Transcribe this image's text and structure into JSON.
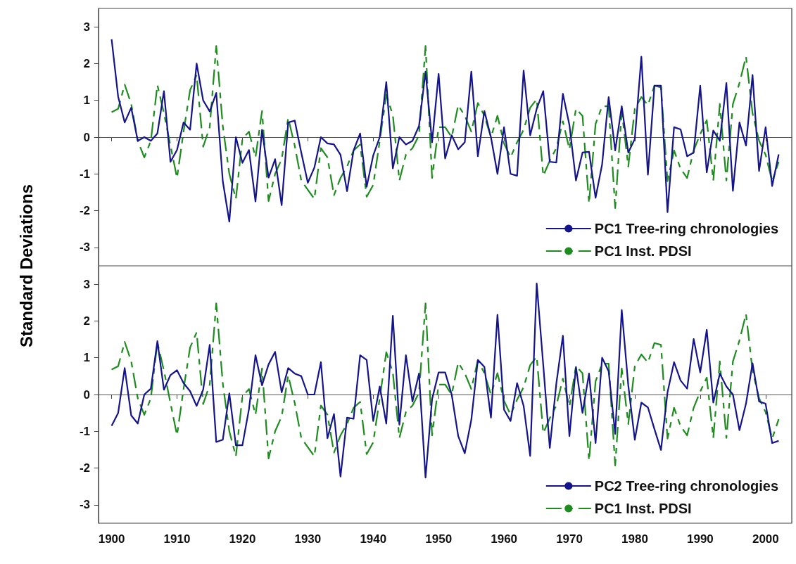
{
  "chart_data": [
    {
      "type": "line",
      "ylabel": "Standard Deviations",
      "xlim": [
        1898,
        2004
      ],
      "xticks": [
        1900,
        1910,
        1920,
        1930,
        1940,
        1950,
        1960,
        1970,
        1980,
        1990,
        2000
      ],
      "ylim": [
        -3.5,
        3.5
      ],
      "yticks": [
        -3,
        -2,
        -1,
        0,
        1,
        2,
        3
      ],
      "tick_labels": "y",
      "legend": "bottom right",
      "ref_lines": [
        {
          "axis": "y",
          "value": 0,
          "color": "#555555"
        }
      ],
      "x": [
        1900,
        1901,
        1902,
        1903,
        1904,
        1905,
        1906,
        1907,
        1908,
        1909,
        1910,
        1911,
        1912,
        1913,
        1914,
        1915,
        1916,
        1917,
        1918,
        1919,
        1920,
        1921,
        1922,
        1923,
        1924,
        1925,
        1926,
        1927,
        1928,
        1929,
        1930,
        1931,
        1932,
        1933,
        1934,
        1935,
        1936,
        1937,
        1938,
        1939,
        1940,
        1941,
        1942,
        1943,
        1944,
        1945,
        1946,
        1947,
        1948,
        1949,
        1950,
        1951,
        1952,
        1953,
        1954,
        1955,
        1956,
        1957,
        1958,
        1959,
        1960,
        1961,
        1962,
        1963,
        1964,
        1965,
        1966,
        1967,
        1968,
        1969,
        1970,
        1971,
        1972,
        1973,
        1974,
        1975,
        1976,
        1977,
        1978,
        1979,
        1980,
        1981,
        1982,
        1983,
        1984,
        1985,
        1986,
        1987,
        1988,
        1989,
        1990,
        1991,
        1992,
        1993,
        1994,
        1995,
        1996,
        1997,
        1998,
        1999,
        2000,
        2001,
        2002
      ],
      "series": [
        {
          "name": "PC1 Tree-ring chronologies",
          "color": "#14148c",
          "line_style": "solid",
          "values": [
            2.66,
            1.1,
            0.4,
            0.8,
            -0.1,
            0.0,
            -0.1,
            0.1,
            1.25,
            -0.67,
            -0.35,
            0.4,
            0.2,
            2.0,
            1.0,
            0.7,
            1.2,
            -1.2,
            -2.3,
            0.0,
            -0.7,
            -0.35,
            -1.75,
            0.2,
            -1.1,
            -0.6,
            -1.85,
            0.4,
            0.45,
            -0.42,
            -1.24,
            -0.83,
            0.0,
            -0.17,
            -0.2,
            -0.48,
            -1.47,
            -0.36,
            0.1,
            -1.35,
            -0.5,
            0.0,
            1.5,
            -0.85,
            0.0,
            -0.2,
            -0.1,
            0.3,
            1.78,
            -0.14,
            1.72,
            -0.58,
            0.05,
            -0.33,
            -0.14,
            1.78,
            -0.52,
            0.71,
            0.0,
            -1.0,
            0.27,
            -1.0,
            -1.05,
            1.81,
            0.05,
            0.77,
            1.25,
            -0.67,
            -0.69,
            1.18,
            0.33,
            -1.18,
            -0.42,
            -0.4,
            -1.65,
            -0.74,
            1.09,
            -0.36,
            0.84,
            -0.42,
            -0.05,
            2.19,
            -1.02,
            1.4,
            1.4,
            -2.04,
            0.27,
            0.21,
            -0.52,
            -0.42,
            1.4,
            -0.96,
            0.18,
            -0.1,
            1.47,
            -1.46,
            0.4,
            -0.23,
            1.69,
            -0.92,
            0.27,
            -1.33,
            -0.47
          ]
        },
        {
          "name": "PC1 Inst. PDSI",
          "color": "#1e8c1e",
          "line_style": "dashed",
          "values": [
            0.68,
            0.77,
            1.43,
            0.9,
            -0.1,
            -0.55,
            -0.1,
            1.42,
            0.65,
            -0.23,
            -1.11,
            0.15,
            1.28,
            1.69,
            -0.26,
            0.27,
            2.48,
            0.3,
            -1.0,
            -1.68,
            -0.05,
            0.15,
            -0.55,
            0.71,
            -1.74,
            -1.0,
            -0.6,
            0.52,
            -0.23,
            -1.18,
            -1.43,
            -1.68,
            -0.3,
            -0.55,
            -1.58,
            -1.11,
            -0.8,
            -0.36,
            -0.2,
            -1.62,
            -1.3,
            -0.1,
            1.15,
            0.6,
            -1.18,
            -0.48,
            -0.3,
            0.05,
            2.48,
            -1.11,
            0.27,
            0.27,
            0.0,
            0.87,
            0.58,
            0.15,
            0.93,
            0.58,
            0.0,
            0.58,
            -0.17,
            -0.55,
            -0.14,
            0.2,
            0.8,
            1.03,
            -1.05,
            -0.64,
            -0.3,
            0.43,
            -0.33,
            0.77,
            0.58,
            -1.8,
            0.36,
            0.84,
            0.84,
            -1.93,
            0.71,
            -0.8,
            0.77,
            1.09,
            0.87,
            1.4,
            1.35,
            -1.2,
            -0.36,
            -0.86,
            -1.11,
            -0.36,
            0.08,
            0.46,
            -1.18,
            0.9,
            -1.18,
            0.9,
            1.47,
            2.19,
            0.65,
            -0.1,
            -0.48,
            -1.2,
            -0.67
          ]
        }
      ]
    },
    {
      "type": "line",
      "xlim": [
        1898,
        2004
      ],
      "xticks": [
        1900,
        1910,
        1920,
        1930,
        1940,
        1950,
        1960,
        1970,
        1980,
        1990,
        2000
      ],
      "ylim": [
        -3.5,
        3.5
      ],
      "yticks": [
        -3,
        -2,
        -1,
        0,
        1,
        2,
        3
      ],
      "legend": "bottom right",
      "ref_lines": [
        {
          "axis": "y",
          "value": 0,
          "color": "#555555"
        }
      ],
      "x": [
        1900,
        1901,
        1902,
        1903,
        1904,
        1905,
        1906,
        1907,
        1908,
        1909,
        1910,
        1911,
        1912,
        1913,
        1914,
        1915,
        1916,
        1917,
        1918,
        1919,
        1920,
        1921,
        1922,
        1923,
        1924,
        1925,
        1926,
        1927,
        1928,
        1929,
        1930,
        1931,
        1932,
        1933,
        1934,
        1935,
        1936,
        1937,
        1938,
        1939,
        1940,
        1941,
        1942,
        1943,
        1944,
        1945,
        1946,
        1947,
        1948,
        1949,
        1950,
        1951,
        1952,
        1953,
        1954,
        1955,
        1956,
        1957,
        1958,
        1959,
        1960,
        1961,
        1962,
        1963,
        1964,
        1965,
        1966,
        1967,
        1968,
        1969,
        1970,
        1971,
        1972,
        1973,
        1974,
        1975,
        1976,
        1977,
        1978,
        1979,
        1980,
        1981,
        1982,
        1983,
        1984,
        1985,
        1986,
        1987,
        1988,
        1989,
        1990,
        1991,
        1992,
        1993,
        1994,
        1995,
        1996,
        1997,
        1998,
        1999,
        2000,
        2001,
        2002
      ],
      "series": [
        {
          "name": "PC2 Tree-ring chronologies",
          "color": "#14148c",
          "line_style": "solid",
          "values": [
            -0.85,
            -0.5,
            0.72,
            -0.57,
            -0.79,
            0.0,
            0.16,
            1.45,
            0.13,
            0.53,
            0.66,
            0.31,
            0.09,
            -0.31,
            0.13,
            1.35,
            -1.29,
            -1.23,
            0.03,
            -1.38,
            -1.38,
            -0.4,
            1.07,
            0.25,
            0.82,
            1.16,
            0.06,
            0.72,
            0.57,
            0.5,
            0.0,
            0.0,
            0.88,
            -1.19,
            -0.53,
            -2.23,
            -0.63,
            -0.66,
            1.07,
            0.94,
            -0.72,
            0.22,
            -0.79,
            2.14,
            -0.82,
            1.07,
            -0.19,
            0.57,
            -2.26,
            -0.13,
            0.6,
            0.6,
            0.0,
            -1.13,
            -1.6,
            -0.69,
            0.94,
            0.75,
            -0.63,
            2.17,
            -0.41,
            -0.72,
            0.31,
            -0.31,
            -1.67,
            3.02,
            0.8,
            -1.45,
            0.3,
            1.6,
            -1.13,
            0.75,
            -0.5,
            0.57,
            -1.32,
            1.0,
            0.63,
            -1.07,
            2.3,
            0.25,
            -1.23,
            -0.22,
            -0.35,
            -0.94,
            -1.51,
            0.06,
            0.88,
            0.38,
            0.16,
            1.51,
            0.6,
            1.76,
            -0.22,
            0.57,
            0.22,
            0.0,
            -0.97,
            -0.25,
            0.85,
            -0.19,
            -0.25,
            -1.32,
            -1.26
          ]
        },
        {
          "name": "PC1 Inst. PDSI",
          "color": "#1e8c1e",
          "line_style": "dashed",
          "values": [
            0.68,
            0.77,
            1.43,
            0.9,
            -0.1,
            -0.55,
            -0.1,
            1.42,
            0.65,
            -0.23,
            -1.11,
            0.15,
            1.28,
            1.69,
            -0.26,
            0.27,
            2.48,
            0.3,
            -1.0,
            -1.68,
            -0.05,
            0.15,
            -0.55,
            0.71,
            -1.74,
            -1.0,
            -0.6,
            0.52,
            -0.23,
            -1.18,
            -1.43,
            -1.68,
            -0.3,
            -0.55,
            -1.58,
            -1.11,
            -0.8,
            -0.36,
            -0.2,
            -1.62,
            -1.3,
            -0.1,
            1.15,
            0.6,
            -1.18,
            -0.48,
            -0.3,
            0.05,
            2.48,
            -1.11,
            0.27,
            0.27,
            0.0,
            0.87,
            0.58,
            0.15,
            0.93,
            0.58,
            0.0,
            0.58,
            -0.17,
            -0.55,
            -0.14,
            0.2,
            0.8,
            1.03,
            -1.05,
            -0.64,
            -0.3,
            0.43,
            -0.33,
            0.77,
            0.58,
            -1.8,
            0.36,
            0.84,
            0.84,
            -1.93,
            0.71,
            -0.8,
            0.77,
            1.09,
            0.87,
            1.4,
            1.35,
            -1.2,
            -0.36,
            -0.86,
            -1.11,
            -0.36,
            0.08,
            0.46,
            -1.18,
            0.9,
            -1.18,
            0.9,
            1.47,
            2.19,
            0.65,
            -0.1,
            -0.48,
            -1.2,
            -0.67
          ]
        }
      ]
    }
  ]
}
